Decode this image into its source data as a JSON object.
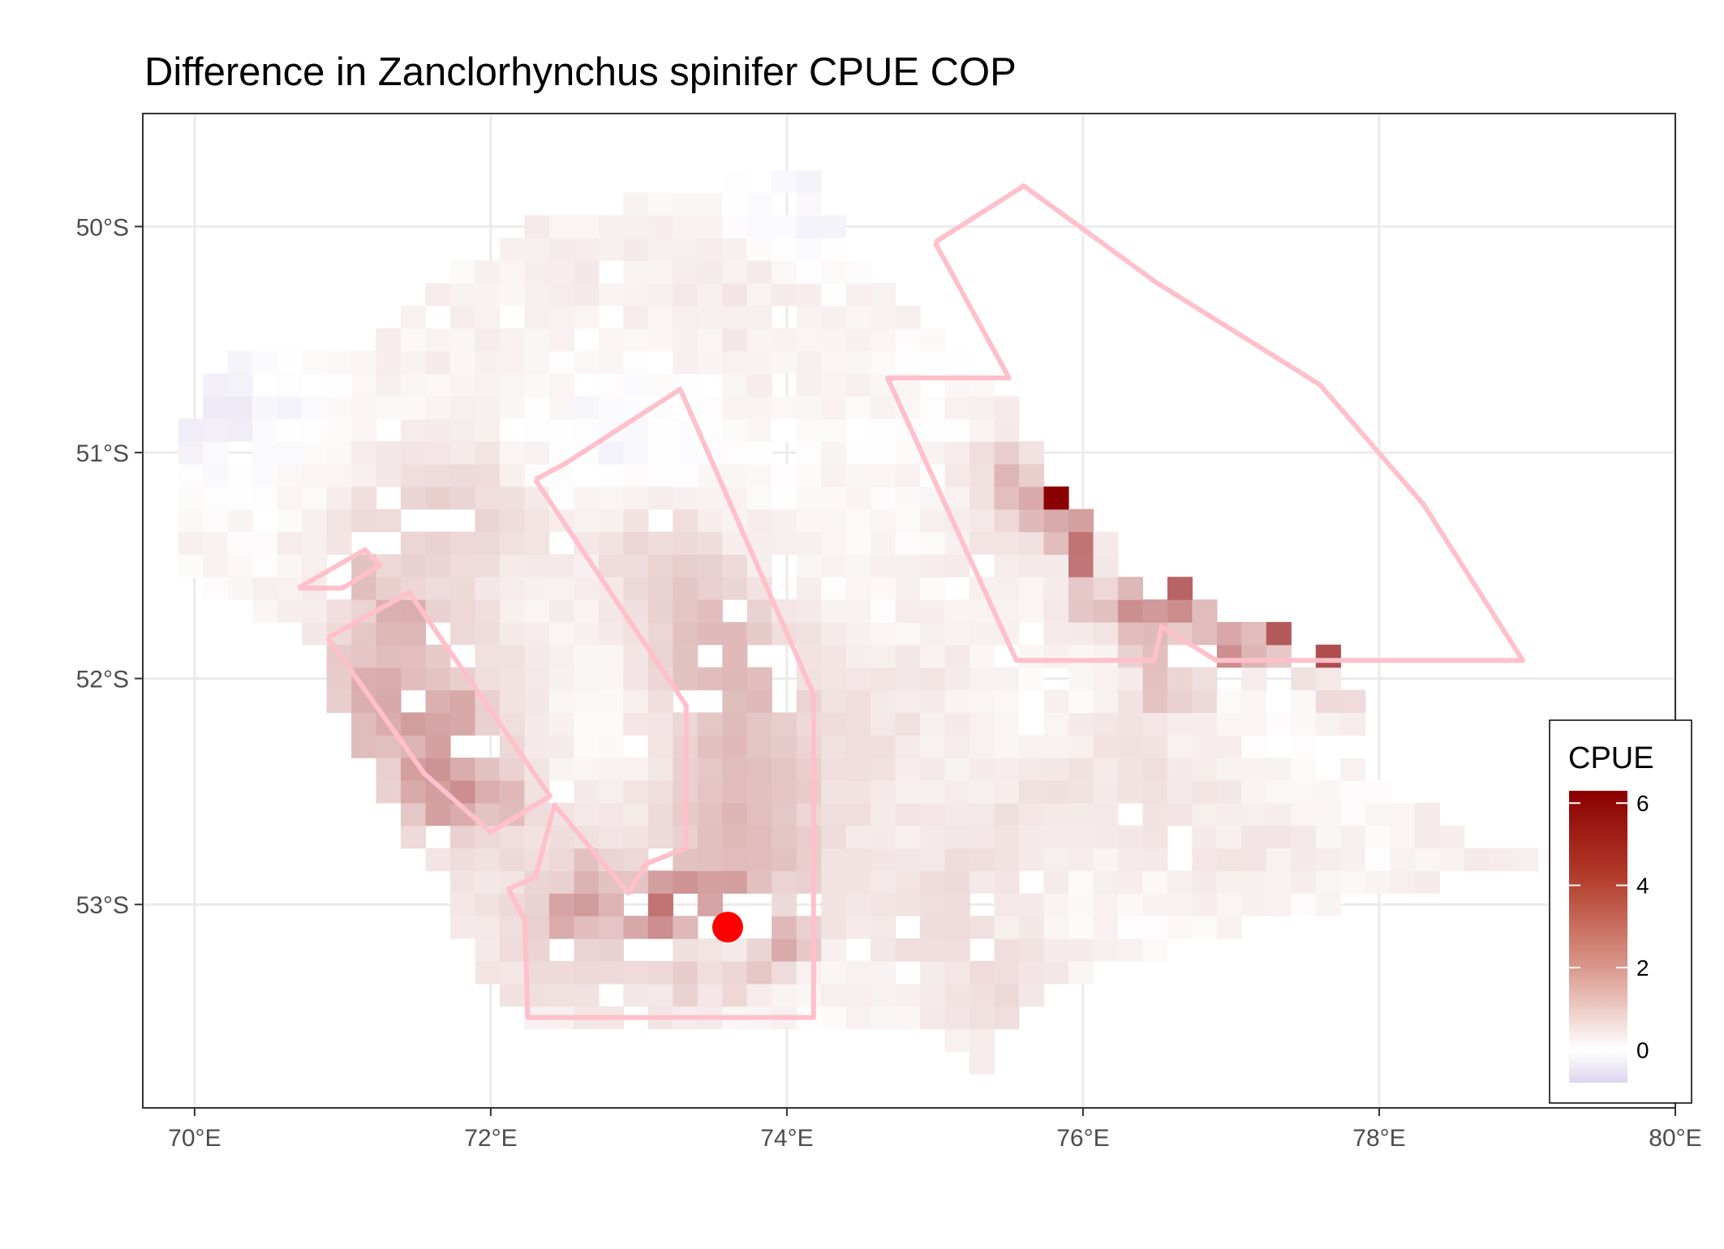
{
  "title": "Difference in  Zanclorhynchus spinifer CPUE COP",
  "chart_data": {
    "type": "heatmap",
    "title": "Difference in  Zanclorhynchus spinifer CPUE COP",
    "x_axis": {
      "range": [
        69.65,
        80.0
      ],
      "ticks": [
        70,
        72,
        74,
        76,
        78,
        80
      ],
      "tick_labels": [
        "70°E",
        "72°E",
        "74°E",
        "76°E",
        "78°E",
        "80°E"
      ]
    },
    "y_axis": {
      "range": [
        -53.9,
        -49.5
      ],
      "ticks": [
        -50,
        -51,
        -52,
        -53
      ],
      "tick_labels": [
        "50°S",
        "51°S",
        "52°S",
        "53°S"
      ]
    },
    "grid": true,
    "legend": {
      "title": "CPUE",
      "position": "bottom-right",
      "ticks": [
        6,
        4,
        2,
        0
      ],
      "tick_labels": [
        "6",
        "4",
        "2",
        "0"
      ],
      "range": [
        -0.8,
        6.3
      ],
      "colors": {
        "low": "#ddd6ee",
        "mid": "#ffffff",
        "high": "#8b0000"
      }
    },
    "cell_size_deg": {
      "lon": 0.167,
      "lat": 0.1
    },
    "marker": {
      "lon": 73.6,
      "lat": -53.1,
      "color": "#ff0000"
    },
    "polygon_color": "#ffc0cb",
    "polygons": [
      {
        "name": "west-small",
        "coords": [
          [
            70.7,
            -51.6
          ],
          [
            71.15,
            -51.43
          ],
          [
            71.25,
            -51.5
          ],
          [
            71.0,
            -51.6
          ],
          [
            70.7,
            -51.6
          ]
        ]
      },
      {
        "name": "west-strip",
        "coords": [
          [
            70.9,
            -51.82
          ],
          [
            71.45,
            -51.62
          ],
          [
            72.4,
            -52.52
          ],
          [
            72.0,
            -52.68
          ],
          [
            71.55,
            -52.42
          ],
          [
            70.9,
            -51.82
          ]
        ]
      },
      {
        "name": "central-box",
        "coords": [
          [
            72.3,
            -51.12
          ],
          [
            72.5,
            -51.05
          ],
          [
            73.28,
            -50.72
          ],
          [
            74.18,
            -52.07
          ],
          [
            74.18,
            -53.5
          ],
          [
            72.25,
            -53.5
          ],
          [
            72.23,
            -53.07
          ],
          [
            72.12,
            -52.93
          ],
          [
            72.3,
            -52.88
          ],
          [
            72.43,
            -52.56
          ],
          [
            72.93,
            -52.95
          ],
          [
            73.05,
            -52.82
          ],
          [
            73.32,
            -52.75
          ],
          [
            73.32,
            -52.12
          ],
          [
            72.3,
            -51.12
          ]
        ]
      },
      {
        "name": "east-sector",
        "coords": [
          [
            75.0,
            -50.07
          ],
          [
            75.6,
            -49.82
          ],
          [
            76.5,
            -50.25
          ],
          [
            77.6,
            -50.7
          ],
          [
            78.3,
            -51.23
          ],
          [
            78.97,
            -51.92
          ],
          [
            76.9,
            -51.92
          ],
          [
            76.53,
            -51.77
          ],
          [
            76.48,
            -51.92
          ],
          [
            75.55,
            -51.92
          ],
          [
            74.68,
            -50.67
          ],
          [
            75.5,
            -50.67
          ],
          [
            75.0,
            -50.07
          ]
        ]
      }
    ],
    "cells": [
      [
        72.2,
        -50.1,
        0.2
      ],
      [
        72.6,
        -50.2,
        0.25
      ],
      [
        73.4,
        -50.3,
        0.3
      ],
      [
        73.8,
        -50.4,
        0.25
      ],
      [
        74.4,
        -50.5,
        0.2
      ],
      [
        71.0,
        -50.5,
        0.1
      ],
      [
        71.8,
        -50.6,
        0.2
      ],
      [
        72.7,
        -50.7,
        0.15
      ],
      [
        70.1,
        -50.7,
        -0.4
      ],
      [
        70.4,
        -50.8,
        -0.3
      ],
      [
        70.8,
        -50.9,
        -0.25
      ],
      [
        72.8,
        -50.8,
        -0.35
      ],
      [
        73.1,
        -51.0,
        -0.4
      ],
      [
        72.6,
        -51.15,
        -0.45
      ],
      [
        69.9,
        -51.0,
        -0.45
      ],
      [
        74.1,
        -49.85,
        -0.4
      ],
      [
        74.3,
        -50.05,
        -0.35
      ],
      [
        75.1,
        -50.8,
        -0.15
      ],
      [
        71.8,
        -51.2,
        0.45
      ],
      [
        72.0,
        -51.3,
        0.6
      ],
      [
        71.5,
        -51.25,
        0.4
      ],
      [
        71.1,
        -51.3,
        0.3
      ],
      [
        71.3,
        -51.5,
        0.35
      ],
      [
        71.7,
        -51.5,
        0.3
      ],
      [
        72.9,
        -51.3,
        0.55
      ],
      [
        73.2,
        -51.5,
        0.75
      ],
      [
        73.4,
        -51.7,
        0.9
      ],
      [
        73.7,
        -51.9,
        0.95
      ],
      [
        73.5,
        -52.0,
        1.0
      ],
      [
        73.9,
        -52.2,
        0.85
      ],
      [
        73.5,
        -52.4,
        0.85
      ],
      [
        73.7,
        -52.55,
        0.95
      ],
      [
        73.9,
        -52.7,
        0.9
      ],
      [
        73.3,
        -52.9,
        1.15
      ],
      [
        72.5,
        -52.95,
        0.9
      ],
      [
        72.9,
        -53.05,
        0.9
      ],
      [
        74.0,
        -52.95,
        0.7
      ],
      [
        73.1,
        -53.4,
        0.45
      ],
      [
        72.4,
        -53.3,
        0.4
      ],
      [
        72.0,
        -53.2,
        0.35
      ],
      [
        74.8,
        -53.1,
        0.6
      ],
      [
        75.4,
        -53.3,
        0.5
      ],
      [
        75.6,
        -53.55,
        0.55
      ],
      [
        75.2,
        -52.8,
        0.55
      ],
      [
        75.7,
        -52.6,
        0.45
      ],
      [
        76.2,
        -52.4,
        0.35
      ],
      [
        76.6,
        -52.6,
        0.35
      ],
      [
        77.0,
        -52.8,
        0.25
      ],
      [
        77.4,
        -52.7,
        0.2
      ],
      [
        74.5,
        -52.4,
        0.5
      ],
      [
        74.8,
        -52.1,
        0.4
      ],
      [
        75.2,
        -51.9,
        0.2
      ],
      [
        76.4,
        -52.15,
        0.35
      ],
      [
        75.5,
        -51.3,
        0.7
      ],
      [
        75.6,
        -51.0,
        0.5
      ],
      [
        74.8,
        -51.1,
        -0.1
      ],
      [
        75.4,
        -52.1,
        -0.15
      ],
      [
        76.1,
        -52.05,
        -0.1
      ],
      [
        77.3,
        -52.1,
        -0.1
      ],
      [
        78.2,
        -52.8,
        -0.1
      ],
      [
        78.4,
        -52.6,
        0.05
      ],
      [
        78.5,
        -52.8,
        0.1
      ],
      [
        78.6,
        -52.7,
        0.3
      ],
      [
        71.3,
        -51.83,
        0.9
      ],
      [
        71.15,
        -52.0,
        1.05
      ],
      [
        71.5,
        -52.2,
        1.25
      ],
      [
        71.8,
        -52.35,
        0.95
      ],
      [
        71.9,
        -52.55,
        1.0
      ],
      [
        71.6,
        -52.55,
        0.75
      ],
      [
        71.9,
        -51.9,
        0.55
      ]
    ],
    "hotspots": [
      [
        71.05,
        -51.55,
        2.0
      ],
      [
        71.4,
        -51.73,
        1.7
      ],
      [
        71.2,
        -52.05,
        1.1
      ],
      [
        71.45,
        -52.15,
        1.0
      ],
      [
        71.75,
        -52.15,
        1.4
      ],
      [
        71.2,
        -52.25,
        1.0
      ],
      [
        71.6,
        -52.35,
        0.9
      ],
      [
        71.55,
        -52.45,
        1.3
      ],
      [
        71.85,
        -52.5,
        1.1
      ],
      [
        72.15,
        -52.55,
        1.0
      ],
      [
        71.7,
        -52.6,
        1.0
      ],
      [
        73.2,
        -52.95,
        2.1
      ],
      [
        73.2,
        -53.05,
        2.2
      ],
      [
        73.35,
        -52.95,
        1.5
      ],
      [
        73.55,
        -52.95,
        1.7
      ],
      [
        73.7,
        -52.95,
        1.2
      ],
      [
        72.5,
        -53.05,
        1.5
      ],
      [
        72.7,
        -53.0,
        1.2
      ],
      [
        72.65,
        -52.85,
        1.0
      ],
      [
        73.05,
        -53.1,
        1.0
      ],
      [
        73.9,
        -53.15,
        1.0
      ],
      [
        74.05,
        -53.15,
        0.9
      ],
      [
        73.85,
        -53.3,
        0.9
      ],
      [
        74.05,
        -53.2,
        0.9
      ],
      [
        73.35,
        -53.35,
        0.8
      ],
      [
        73.65,
        -53.35,
        0.8
      ],
      [
        75.55,
        -51.15,
        1.2
      ],
      [
        75.75,
        -51.25,
        1.2
      ],
      [
        75.85,
        -51.35,
        1.6
      ],
      [
        76.0,
        -51.45,
        2.6
      ],
      [
        76.05,
        -51.65,
        2.1
      ],
      [
        76.35,
        -51.65,
        2.1
      ],
      [
        76.5,
        -51.65,
        1.9
      ],
      [
        76.65,
        -51.65,
        2.6
      ],
      [
        76.85,
        -51.75,
        1.6
      ],
      [
        76.95,
        -51.85,
        1.6
      ],
      [
        77.05,
        -51.85,
        1.4
      ],
      [
        77.15,
        -51.85,
        1.2
      ],
      [
        76.6,
        -51.75,
        1.4
      ],
      [
        76.5,
        -51.85,
        1.5
      ],
      [
        76.25,
        -51.75,
        1.2
      ],
      [
        76.35,
        -51.85,
        0.9
      ],
      [
        76.45,
        -52.05,
        1.0
      ],
      [
        76.55,
        -52.05,
        0.9
      ],
      [
        76.75,
        -52.05,
        0.9
      ],
      [
        76.95,
        -51.95,
        0.7
      ],
      [
        77.05,
        -51.95,
        0.9
      ],
      [
        77.35,
        -51.95,
        1.0
      ],
      [
        77.75,
        -52.05,
        0.9
      ],
      [
        77.75,
        -52.15,
        0.7
      ],
      [
        77.4,
        -51.95,
        0.7
      ],
      [
        75.65,
        -51.25,
        0.9
      ],
      [
        75.45,
        -51.05,
        0.8
      ],
      [
        75.85,
        -51.75,
        0.6
      ]
    ],
    "special_cells": [
      [
        75.85,
        -51.25,
        6.3
      ],
      [
        76.05,
        -51.45,
        3.1
      ],
      [
        76.05,
        -51.55,
        3.0
      ],
      [
        75.95,
        -51.35,
        2.0
      ],
      [
        76.67,
        -51.65,
        3.5
      ],
      [
        77.25,
        -51.85,
        3.8
      ],
      [
        77.65,
        -51.95,
        4.1
      ],
      [
        76.35,
        -51.67,
        2.4
      ]
    ],
    "holes": [
      [
        73.0,
        -53.02
      ],
      [
        73.6,
        -53.02
      ],
      [
        73.6,
        -53.12
      ],
      [
        73.75,
        -53.12
      ],
      [
        73.4,
        -53.12
      ],
      [
        72.9,
        -53.18
      ],
      [
        73.2,
        -53.18
      ],
      [
        71.1,
        -51.45
      ],
      [
        71.25,
        -51.45
      ],
      [
        71.45,
        -51.35
      ],
      [
        71.7,
        -51.35
      ],
      [
        71.0,
        -51.65
      ],
      [
        70.95,
        -51.55
      ],
      [
        70.3,
        -51.0
      ],
      [
        72.45,
        -51.45
      ],
      [
        76.7,
        -51.92
      ],
      [
        77.5,
        -51.9
      ],
      [
        77.8,
        -51.9
      ]
    ]
  }
}
